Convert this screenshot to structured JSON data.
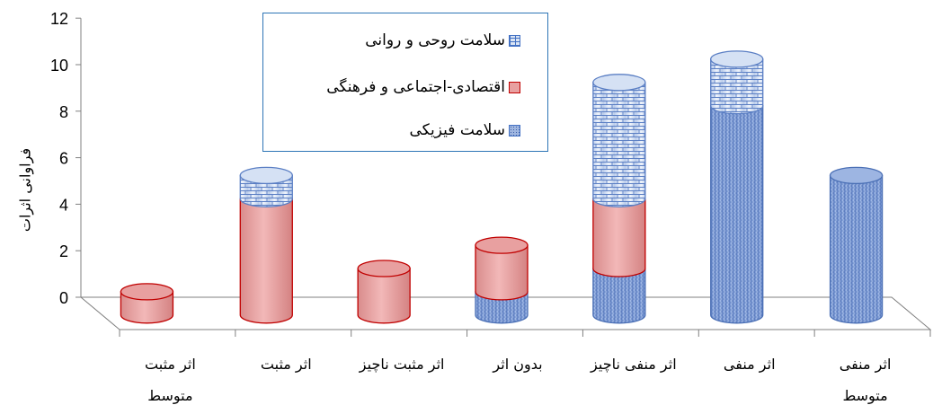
{
  "chart_data": {
    "type": "bar",
    "style": "3d-cylinder-stacked",
    "ylabel": "فراوانی اثرات",
    "ylim": [
      0,
      12
    ],
    "yticks": [
      "0",
      "2",
      "4",
      "6",
      "8",
      "10",
      "12"
    ],
    "categories": [
      "اثر مثبت متوسط",
      "اثر مثبت",
      "اثر مثبت ناچیز",
      "بدون اثر",
      "اثر منفی ناچیز",
      "اثر منفی",
      "اثر منفی متوسط"
    ],
    "category_lines": [
      [
        "اثر مثبت",
        "متوسط"
      ],
      [
        "اثر مثبت"
      ],
      [
        "اثر مثبت ناچیز"
      ],
      [
        "بدون اثر"
      ],
      [
        "اثر منفی ناچیز"
      ],
      [
        "اثر منفی"
      ],
      [
        "اثر منفی",
        "متوسط"
      ]
    ],
    "series": [
      {
        "name": "سلامت فیزیکی",
        "values": [
          0,
          0,
          0,
          1,
          2,
          9,
          6
        ],
        "color": "#5b7fc4"
      },
      {
        "name": "اقتصادی-اجتماعی و فرهنگی",
        "values": [
          1,
          5,
          2,
          2,
          3,
          0,
          0
        ],
        "color": "#e8a0a0"
      },
      {
        "name": "سلامت روحی و روانی",
        "values": [
          0,
          1,
          0,
          0,
          5,
          2,
          0
        ],
        "color": "#c9d7ef"
      }
    ],
    "legend_position": "top-center"
  }
}
